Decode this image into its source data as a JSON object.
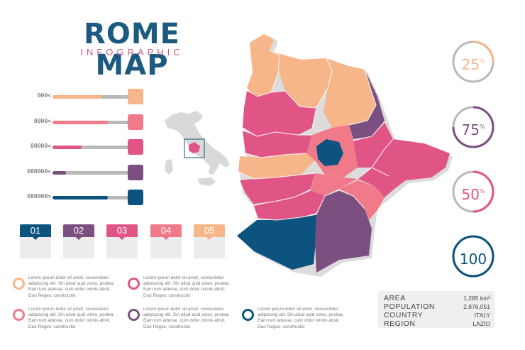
{
  "header": {
    "title": "ROME MAP",
    "subtitle": "INFOGRAPHIC"
  },
  "colors": {
    "navy": "#0d5380",
    "purple": "#7b4f80",
    "pink": "#e05585",
    "coral": "#f07a8a",
    "peach": "#f7b58a",
    "gray": "#b9b9b9",
    "title": "#1c5a82",
    "subtitle": "#c65b8a"
  },
  "bars": [
    {
      "label": "000<",
      "fraction": 0.65,
      "color": "#f7b58a"
    },
    {
      "label": "0000<",
      "fraction": 0.72,
      "color": "#f07a8a"
    },
    {
      "label": "00000<",
      "fraction": 0.38,
      "color": "#e05585"
    },
    {
      "label": "000000<",
      "fraction": 0.18,
      "color": "#7b4f80"
    },
    {
      "label": "000000>",
      "fraction": 0.72,
      "color": "#0d5380"
    }
  ],
  "tabs": [
    {
      "label": "01",
      "color": "#0d5380"
    },
    {
      "label": "02",
      "color": "#7b4f80"
    },
    {
      "label": "03",
      "color": "#e05585"
    },
    {
      "label": "04",
      "color": "#f07a8a"
    },
    {
      "label": "05",
      "color": "#f7b58a"
    }
  ],
  "lorem_items": [
    {
      "text": "Lorem ipsum dolor sit amet, consectetur adipiscing elit. Sin aliud quid voles, postea. Eam tum adesse, cum dolor omnis absit, Duo Reges: constructio",
      "color": "#f7b58a"
    },
    {
      "text": "Lorem ipsum dolor sit amet, consectetur adipiscing elit. Sin aliud quid voles, postea. Eam tum adesse, cum dolor omnis absit, Duo Reges: constructio",
      "color": "#e05585"
    },
    {
      "text": "Lorem ipsum dolor sit amet, consectetur adipiscing elit. Sin aliud quid voles, postea. Eam tum adesse, cum dolor omnis absit, Duo Reges: constructio",
      "color": "#f07a8a"
    },
    {
      "text": "Lorem ipsum dolor sit amet, consectetur adipiscing elit. Sin aliud quid voles, postea. Eam tum adesse, cum dolor omnis absit, Duo Reges: constructio",
      "color": "#7b4f80"
    },
    {
      "text": "Lorem ipsum dolor sit amet, consectetur adipiscing elit. Sin aliud quid voles, postea. Eam tum adesse, cum dolor omnis absit, Duo Reges: constructio",
      "color": "#0d5380"
    }
  ],
  "percentages": [
    {
      "value": "25",
      "suffix": "%",
      "fraction": 0.25,
      "color": "#f7b58a"
    },
    {
      "value": "75",
      "suffix": "%",
      "fraction": 0.75,
      "color": "#7b4f80"
    },
    {
      "value": "50",
      "suffix": "%",
      "fraction": 0.5,
      "color": "#e05585"
    },
    {
      "value": "100",
      "suffix": "",
      "fraction": 1.0,
      "color": "#0d5380"
    }
  ],
  "stats": [
    {
      "key": "AREA",
      "value": "1,285 km²"
    },
    {
      "key": "POPULATION",
      "value": "2,876,051"
    },
    {
      "key": "COUNTRY",
      "value": "ITALY"
    },
    {
      "key": "REGION",
      "value": "LAZIO"
    }
  ]
}
